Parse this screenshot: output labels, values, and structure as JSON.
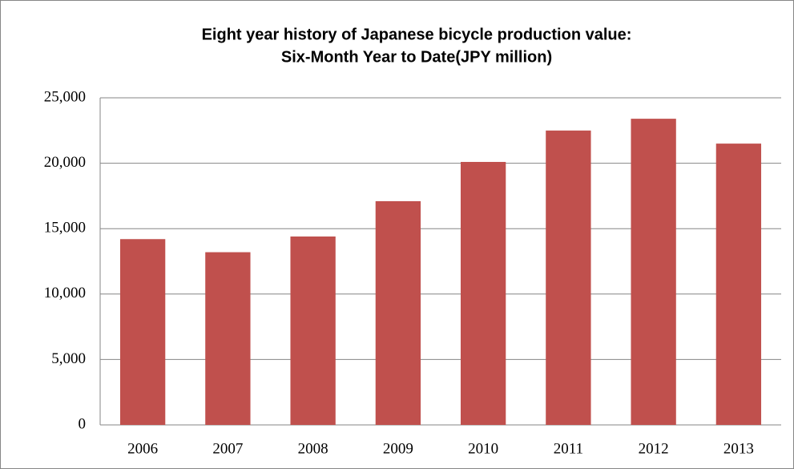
{
  "chart_data": {
    "type": "bar",
    "title": [
      "Eight year history of Japanese bicycle production value:",
      "Six-Month Year to Date(JPY million)"
    ],
    "categories": [
      "2006",
      "2007",
      "2008",
      "2009",
      "2010",
      "2011",
      "2012",
      "2013"
    ],
    "values": [
      14200,
      13200,
      14400,
      17100,
      20100,
      22500,
      23400,
      21500
    ],
    "color": "#c0504d",
    "ylim": [
      0,
      25000
    ],
    "yticks": [
      0,
      {
        "value": 5000,
        "label": "5,000"
      },
      {
        "value": 10000,
        "label": "10,000"
      },
      {
        "value": 15000,
        "label": "15,000"
      },
      {
        "value": 20000,
        "label": "20,000"
      },
      {
        "value": 25000,
        "label": "25,000"
      }
    ],
    "grid": true
  }
}
